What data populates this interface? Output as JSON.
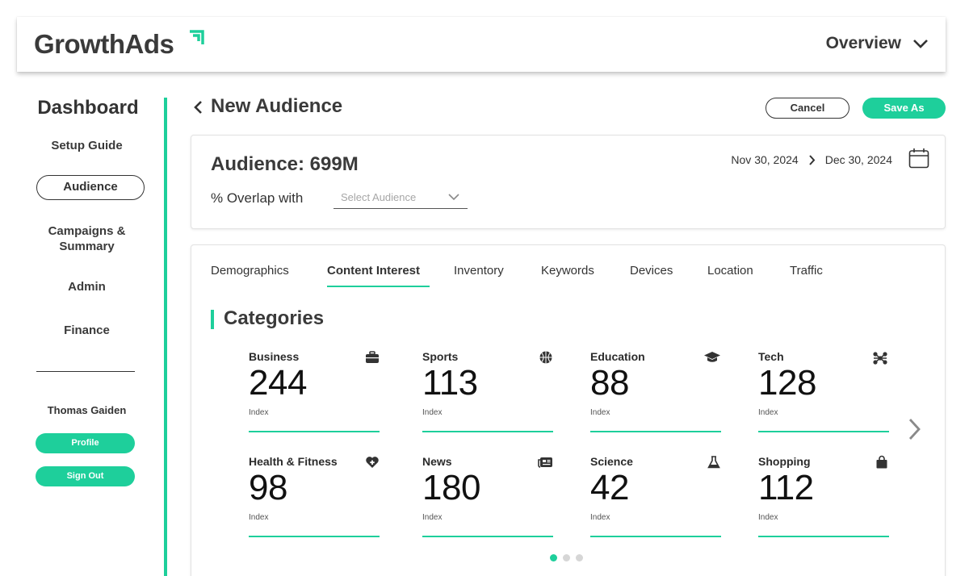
{
  "brand": {
    "logo_text": "GrowthAds",
    "accent_color": "#1ecf9b"
  },
  "header": {
    "view_label": "Overview",
    "view_icon": "chevron-down-icon"
  },
  "sidebar": {
    "title": "Dashboard",
    "items": [
      {
        "label": "Setup Guide"
      },
      {
        "label": "Audience",
        "active": true
      },
      {
        "label": "Campaigns &"
      },
      {
        "label": "Summary"
      },
      {
        "label": "Admin"
      },
      {
        "label": "Finance"
      }
    ],
    "user": {
      "name": "Thomas Gaiden",
      "profile_label": "Profile",
      "signout_label": "Sign Out"
    }
  },
  "page": {
    "title": "New Audience",
    "cancel_label": "Cancel",
    "save_label": "Save As"
  },
  "audience": {
    "title": "Audience: 699M",
    "overlap_label": "% Overlap with",
    "select_placeholder": "Select Audience",
    "date_start": "Nov 30, 2024",
    "date_end": "Dec 30, 2024"
  },
  "tabs": [
    {
      "label": "Demographics"
    },
    {
      "label": "Content Interest",
      "active": true
    },
    {
      "label": "Inventory"
    },
    {
      "label": "Keywords"
    },
    {
      "label": "Devices"
    },
    {
      "label": "Location"
    },
    {
      "label": "Traffic"
    }
  ],
  "categories": {
    "title": "Categories",
    "page_index": 1,
    "page_count": 3,
    "items": [
      {
        "name": "Business",
        "value": "244",
        "label": "Index",
        "icon": "briefcase-icon"
      },
      {
        "name": "Sports",
        "value": "113",
        "label": "Index",
        "icon": "basketball-icon"
      },
      {
        "name": "Education",
        "value": "88",
        "label": "Index",
        "icon": "graduation-cap-icon"
      },
      {
        "name": "Tech",
        "value": "128",
        "label": "Index",
        "icon": "network-icon"
      },
      {
        "name": "Health & Fitness",
        "value": "98",
        "label": "Index",
        "icon": "heart-plus-icon"
      },
      {
        "name": "News",
        "value": "180",
        "label": "Index",
        "icon": "newspaper-icon"
      },
      {
        "name": "Science",
        "value": "42",
        "label": "Index",
        "icon": "flask-icon"
      },
      {
        "name": "Shopping",
        "value": "112",
        "label": "Index",
        "icon": "shopping-bag-icon"
      }
    ]
  }
}
